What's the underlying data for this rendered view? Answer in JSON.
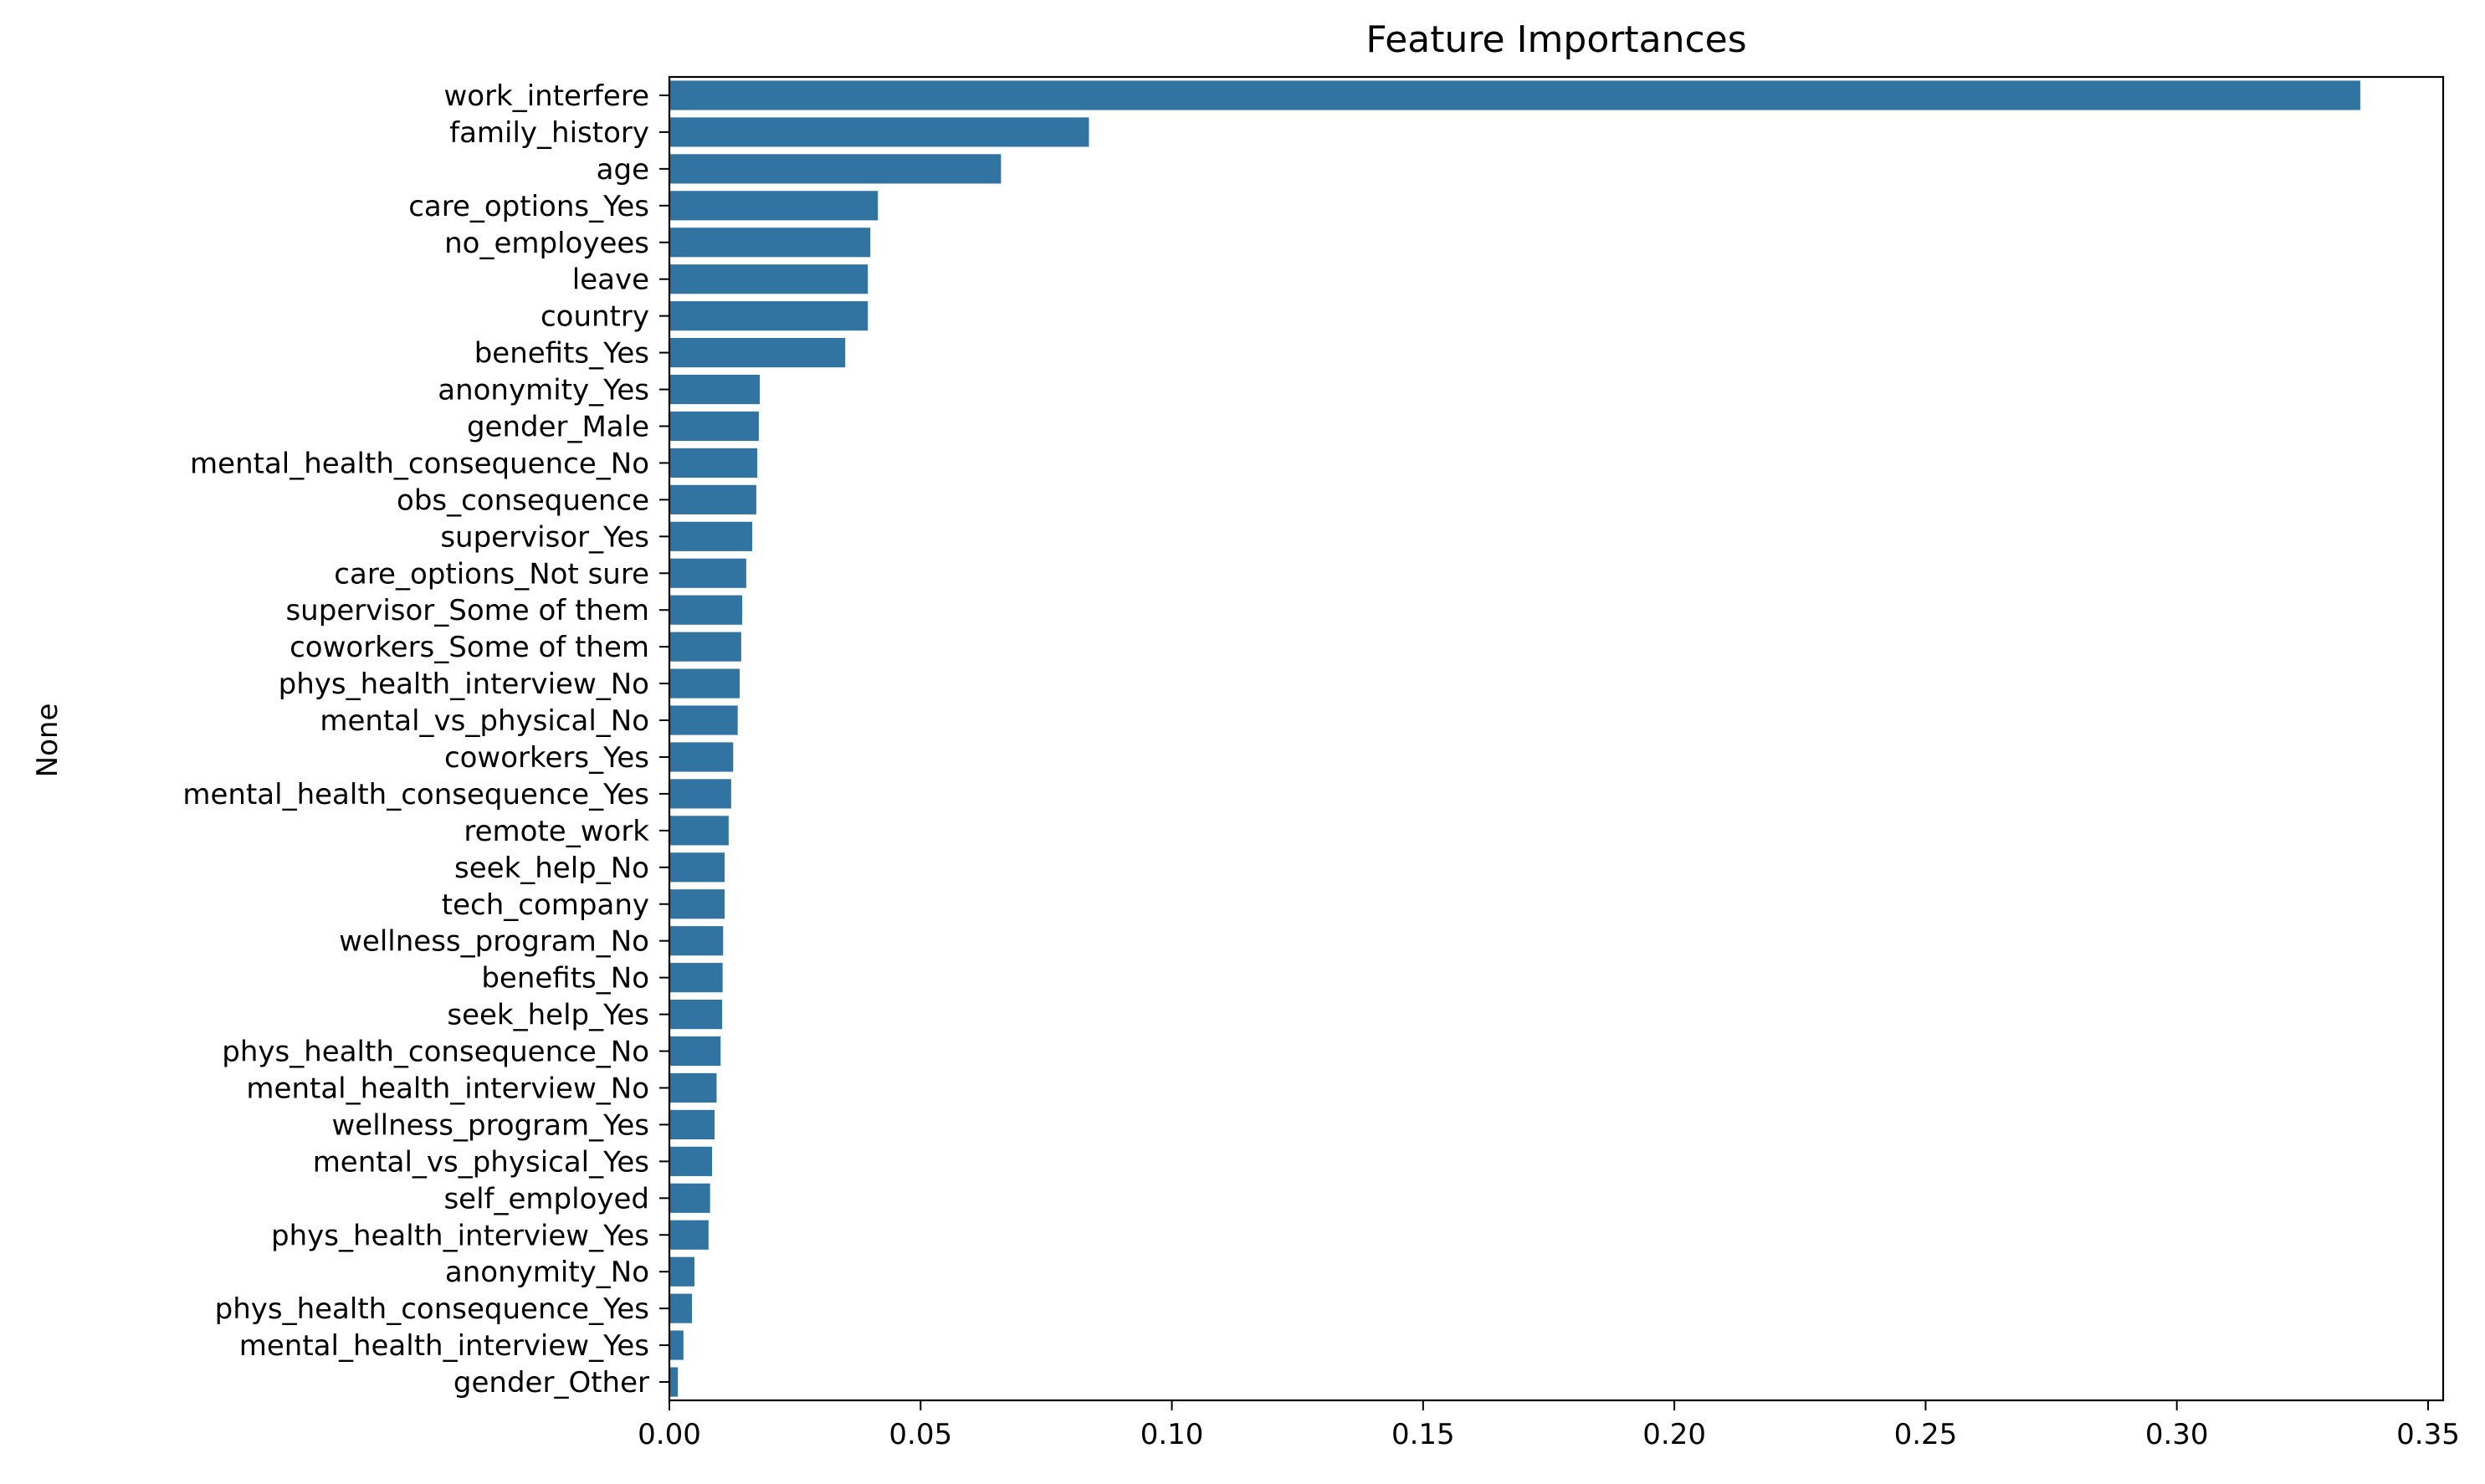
{
  "chart_data": {
    "type": "bar",
    "orientation": "horizontal",
    "title": "Feature Importances",
    "xlabel": "",
    "ylabel": "None",
    "xlim": [
      0,
      0.353
    ],
    "xticks": [
      "0.00",
      "0.05",
      "0.10",
      "0.15",
      "0.20",
      "0.25",
      "0.30",
      "0.35"
    ],
    "grid": false,
    "legend": "none",
    "bar_color": "#3274a1",
    "categories": [
      "work_interfere",
      "family_history",
      "age",
      "care_options_Yes",
      "no_employees",
      "leave",
      "country",
      "benefits_Yes",
      "anonymity_Yes",
      "gender_Male",
      "mental_health_consequence_No",
      "obs_consequence",
      "supervisor_Yes",
      "care_options_Not sure",
      "supervisor_Some of them",
      "coworkers_Some of them",
      "phys_health_interview_No",
      "mental_vs_physical_No",
      "coworkers_Yes",
      "mental_health_consequence_Yes",
      "remote_work",
      "seek_help_No",
      "tech_company",
      "wellness_program_No",
      "benefits_No",
      "seek_help_Yes",
      "phys_health_consequence_No",
      "mental_health_interview_No",
      "wellness_program_Yes",
      "mental_vs_physical_Yes",
      "self_employed",
      "phys_health_interview_Yes",
      "anonymity_No",
      "phys_health_consequence_Yes",
      "mental_health_interview_Yes",
      "gender_Other"
    ],
    "values": [
      0.3365,
      0.0835,
      0.066,
      0.0415,
      0.04,
      0.0395,
      0.0395,
      0.035,
      0.018,
      0.0178,
      0.0175,
      0.0173,
      0.0165,
      0.0153,
      0.0145,
      0.0143,
      0.014,
      0.0136,
      0.0127,
      0.0123,
      0.0118,
      0.011,
      0.011,
      0.0107,
      0.0106,
      0.0105,
      0.0102,
      0.0094,
      0.009,
      0.0085,
      0.0081,
      0.0078,
      0.005,
      0.0045,
      0.0028,
      0.0017
    ]
  }
}
